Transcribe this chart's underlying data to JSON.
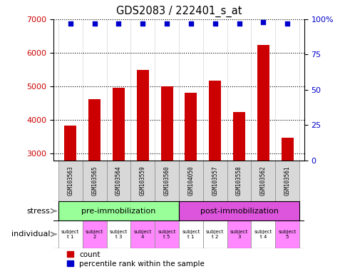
{
  "title": "GDS2083 / 222401_s_at",
  "samples": [
    "GSM103563",
    "GSM103565",
    "GSM103564",
    "GSM103559",
    "GSM103560",
    "GSM104050",
    "GSM103557",
    "GSM103558",
    "GSM103562",
    "GSM103561"
  ],
  "counts": [
    3830,
    4620,
    4950,
    5480,
    5000,
    4800,
    5170,
    4230,
    6230,
    3480
  ],
  "percentile_ranks": [
    97,
    97,
    97,
    97,
    97,
    97,
    97,
    97,
    98,
    97
  ],
  "ylim_left": [
    2800,
    7000
  ],
  "ylim_right": [
    0,
    100
  ],
  "yticks_left": [
    3000,
    4000,
    5000,
    6000,
    7000
  ],
  "yticks_right": [
    0,
    25,
    50,
    75,
    100
  ],
  "bar_color": "#cc0000",
  "dot_color": "#0000cc",
  "stress_groups": [
    {
      "label": "pre-immobilization",
      "start": 0,
      "end": 5,
      "color": "#99ff99"
    },
    {
      "label": "post-immobilization",
      "start": 5,
      "end": 10,
      "color": "#dd55dd"
    }
  ],
  "individuals": [
    "subject\nt 1",
    "subject\n2",
    "subject\nt 3",
    "subject\n4",
    "subject\nt 5",
    "subject\nt 1",
    "subject\nt 2",
    "subject\n3",
    "subject\nt 4",
    "subject\n5"
  ],
  "ind_colors": [
    "#ffffff",
    "#ff88ff",
    "#ffffff",
    "#ff88ff",
    "#ff88ff",
    "#ffffff",
    "#ffffff",
    "#ff88ff",
    "#ffffff",
    "#ff88ff"
  ],
  "xlabel_stress": "stress",
  "xlabel_individual": "individual",
  "legend_count_label": "count",
  "legend_pct_label": "percentile rank within the sample",
  "bg_color": "#ffffff",
  "tick_label_color_left": "#cc0000",
  "tick_label_color_right": "#0000cc",
  "sample_cell_color": "#d8d8d8"
}
